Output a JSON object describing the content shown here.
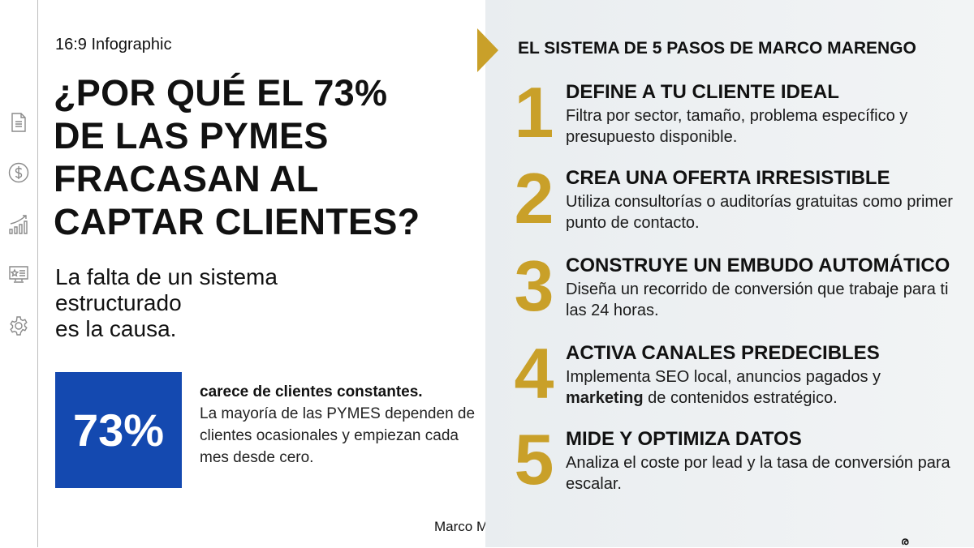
{
  "kicker": "16:9 Infographic",
  "title": [
    "¿POR QUÉ EL 73%",
    "DE LAS PYMES",
    "FRACASAN AL",
    "CAPTAR CLIENTES?"
  ],
  "subtitle": [
    "La falta de un sistema",
    "estructurado",
    "es la causa."
  ],
  "stat": {
    "value": "73%",
    "headline": "carece de clientes constantes.",
    "text": "La mayoría de las PYMES dependen de clientes ocasionales y empiezan cada mes desde cero."
  },
  "author": "Marco Marengo",
  "sidebar": {
    "icons": [
      "document-icon",
      "dollar-icon",
      "growth-chart-icon",
      "monitor-star-icon",
      "gear-icon"
    ]
  },
  "right": {
    "heading": "EL SISTEMA DE 5 PASOS DE MARCO MARENGO",
    "steps": [
      {
        "num": "1",
        "title": "DEFINE A TU CLIENTE IDEAL",
        "desc": "Filtra por sector, tamaño, problema específico y presupuesto disponible."
      },
      {
        "num": "2",
        "title": "CREA UNA OFERTA IRRESISTIBLE",
        "desc": "Utiliza consultorías o auditorías gratuitas como primer punto de contacto."
      },
      {
        "num": "3",
        "title": "CONSTRUYE UN EMBUDO AUTOMÁTICO",
        "desc": "Diseña un recorrido de conversión que trabaje para ti las 24 horas."
      },
      {
        "num": "4",
        "title": "ACTIVA CANALES PREDECIBLES",
        "desc_pre": "Implementa SEO local, anuncios pagados y ",
        "desc_bold": "marketing",
        "desc_post": " de contenidos estratégico."
      },
      {
        "num": "5",
        "title": "MIDE Y OPTIMIZA DATOS",
        "desc": "Analiza el coste por lead y la tasa de conversión para escalar."
      }
    ]
  },
  "colors": {
    "gold": "#c9a029",
    "blue": "#1449b0",
    "panel": "#eef1f3"
  }
}
